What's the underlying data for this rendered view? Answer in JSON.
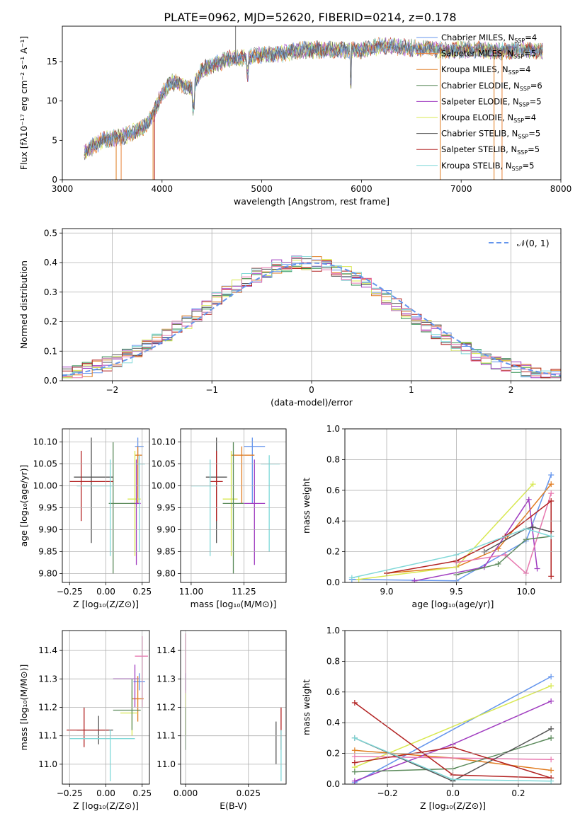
{
  "figure": {
    "title": "PLATE=0962, MJD=52620, FIBERID=0214, z=0.178"
  },
  "colors": {
    "models": [
      "#6495ED",
      "#E8833A",
      "#E07C20",
      "#5B8A5B",
      "#A03CC0",
      "#D8E850",
      "#555555",
      "#B22222",
      "#80D8D8"
    ],
    "axes": "#000000",
    "grid": "#b0b0b0",
    "pdf": "#6495ED",
    "hist": [
      "#6495ED",
      "#E07C20",
      "#2F8F4F",
      "#A03CC0",
      "#D8E850",
      "#555555",
      "#B22222",
      "#80D8D8",
      "#E878B0"
    ]
  },
  "legend_models": [
    {
      "name": "Chabrier MILES, N",
      "sub": "SSP",
      "eq": "=4"
    },
    {
      "name": "Salpeter MILES, N",
      "sub": "SSP",
      "eq": "=5"
    },
    {
      "name": "Kroupa MILES, N",
      "sub": "SSP",
      "eq": "=4"
    },
    {
      "name": "Chabrier ELODIE, N",
      "sub": "SSP",
      "eq": "=6"
    },
    {
      "name": "Salpeter ELODIE, N",
      "sub": "SSP",
      "eq": "=5"
    },
    {
      "name": "Kroupa ELODIE, N",
      "sub": "SSP",
      "eq": "=4"
    },
    {
      "name": "Chabrier STELIB, N",
      "sub": "SSP",
      "eq": "=5"
    },
    {
      "name": "Salpeter STELIB, N",
      "sub": "SSP",
      "eq": "=5"
    },
    {
      "name": "Kroupa STELIB, N",
      "sub": "SSP",
      "eq": "=5"
    }
  ],
  "chart_data": [
    {
      "id": "spectrum",
      "type": "line",
      "xlabel": "wavelength [Angstrom, rest frame]",
      "ylabel": "Flux [fλ10⁻¹⁷ erg cm⁻² s⁻¹ A⁻¹]",
      "xlim": [
        3000,
        8000
      ],
      "ylim": [
        0,
        19.5
      ],
      "xticks": [
        3000,
        4000,
        5000,
        6000,
        7000,
        8000
      ],
      "yticks": [
        0,
        5,
        10,
        15
      ],
      "grid": false,
      "legend_placement": "right",
      "continuum": {
        "x": [
          3220,
          3400,
          3600,
          3800,
          3900,
          3950,
          4000,
          4100,
          4200,
          4300,
          4400,
          4500,
          4600,
          4700,
          4800,
          5000,
          5200,
          5400,
          5600,
          5800,
          6000,
          6200,
          6400,
          6600,
          6800,
          7000,
          7200,
          7400,
          7600,
          7800
        ],
        "y": [
          3.5,
          5.0,
          5.5,
          6.5,
          8.0,
          9.5,
          11.0,
          12.5,
          12.0,
          11.5,
          14.0,
          14.5,
          15.0,
          15.5,
          15.5,
          15.8,
          16.0,
          16.5,
          16.5,
          16.5,
          16.5,
          17.0,
          16.8,
          16.7,
          16.5,
          16.5,
          16.5,
          16.3,
          16.5,
          16.3
        ]
      }
    },
    {
      "id": "residuals",
      "type": "histogram",
      "xlabel": "(data-model)/error",
      "ylabel": "Normed distribution",
      "xlim": [
        -2.5,
        2.5
      ],
      "ylim": [
        0,
        0.515
      ],
      "xticks": [
        -2,
        -1,
        0,
        1,
        2
      ],
      "yticks": [
        0.0,
        0.1,
        0.2,
        0.3,
        0.4,
        0.5
      ],
      "grid": true,
      "legend": "𝒩(0, 1)",
      "legend_placement": "top-right",
      "bin_width": 0.1,
      "bins_start": -2.5
    },
    {
      "id": "age_vs_Z",
      "type": "errorbar",
      "xlabel": "Z [log₁₀(Z/Z⊙)]",
      "ylabel": "age  [log₁₀(age/yr)]",
      "xlim": [
        -0.3,
        0.3
      ],
      "ylim": [
        9.78,
        10.13
      ],
      "xticks": [
        -0.25,
        0.0,
        0.25
      ],
      "yticks": [
        9.8,
        9.85,
        9.9,
        9.95,
        10.0,
        10.05,
        10.1
      ],
      "grid": true,
      "points": [
        {
          "x": 0.22,
          "y": 10.09,
          "xe": [
            0.2,
            0.26
          ],
          "ye": [
            9.96,
            10.11
          ],
          "c": 0
        },
        {
          "x": 0.22,
          "y": 10.07,
          "xe": [
            0.2,
            0.25
          ],
          "ye": [
            9.96,
            10.09
          ],
          "c": 2
        },
        {
          "x": 0.2,
          "y": 9.97,
          "xe": [
            0.15,
            0.24
          ],
          "ye": [
            9.84,
            10.08
          ],
          "c": 5
        },
        {
          "x": 0.21,
          "y": 9.96,
          "xe": [
            0.17,
            0.24
          ],
          "ye": [
            9.82,
            10.06
          ],
          "c": 4
        },
        {
          "x": 0.23,
          "y": 10.05,
          "xe": [
            0.21,
            0.27
          ],
          "ye": [
            9.85,
            10.07
          ],
          "c": 8
        },
        {
          "x": 0.05,
          "y": 9.96,
          "xe": [
            0.02,
            0.2
          ],
          "ye": [
            9.8,
            10.1
          ],
          "c": 3
        },
        {
          "x": -0.1,
          "y": 10.02,
          "xe": [
            -0.22,
            0.05
          ],
          "ye": [
            9.87,
            10.11
          ],
          "c": 6
        },
        {
          "x": -0.17,
          "y": 10.01,
          "xe": [
            -0.25,
            0.05
          ],
          "ye": [
            9.92,
            10.08
          ],
          "c": 7
        },
        {
          "x": 0.03,
          "y": 10.0,
          "xe": [
            -0.2,
            0.05
          ],
          "ye": [
            9.84,
            10.06
          ],
          "c": 8
        }
      ]
    },
    {
      "id": "age_vs_mass",
      "type": "errorbar",
      "xlabel": "mass [log₁₀(M/M⊙)]",
      "ylabel": "",
      "xlim": [
        10.95,
        11.45
      ],
      "ylim": [
        9.78,
        10.13
      ],
      "xticks": [
        11.0,
        11.25
      ],
      "yticks": [
        9.8,
        9.85,
        9.9,
        9.95,
        10.0,
        10.05,
        10.1
      ],
      "grid": true,
      "points": [
        {
          "x": 11.29,
          "y": 10.09,
          "xe": [
            11.25,
            11.35
          ],
          "ye": [
            9.96,
            10.11
          ],
          "c": 0
        },
        {
          "x": 11.24,
          "y": 10.07,
          "xe": [
            11.19,
            11.3
          ],
          "ye": [
            9.96,
            10.09
          ],
          "c": 2
        },
        {
          "x": 11.19,
          "y": 9.97,
          "xe": [
            11.15,
            11.22
          ],
          "ye": [
            9.84,
            10.08
          ],
          "c": 5
        },
        {
          "x": 11.3,
          "y": 9.96,
          "xe": [
            11.23,
            11.35
          ],
          "ye": [
            9.82,
            10.06
          ],
          "c": 4
        },
        {
          "x": 11.37,
          "y": 10.05,
          "xe": [
            11.33,
            11.42
          ],
          "ye": [
            9.85,
            10.07
          ],
          "c": 8
        },
        {
          "x": 11.2,
          "y": 9.96,
          "xe": [
            11.15,
            11.25
          ],
          "ye": [
            9.8,
            10.1
          ],
          "c": 3
        },
        {
          "x": 11.12,
          "y": 10.02,
          "xe": [
            11.07,
            11.17
          ],
          "ye": [
            9.87,
            10.11
          ],
          "c": 6
        },
        {
          "x": 11.12,
          "y": 10.01,
          "xe": [
            11.09,
            11.15
          ],
          "ye": [
            9.92,
            10.08
          ],
          "c": 7
        },
        {
          "x": 11.09,
          "y": 10.0,
          "xe": [
            11.0,
            11.12
          ],
          "ye": [
            9.84,
            10.06
          ],
          "c": 8
        }
      ]
    },
    {
      "id": "mass_weight_vs_age",
      "type": "line",
      "xlabel": "age  [log₁₀(age/yr)]",
      "ylabel": "mass weight",
      "xlim": [
        8.7,
        10.25
      ],
      "ylim": [
        0,
        1.0
      ],
      "xticks": [
        9.0,
        9.5,
        10.0
      ],
      "yticks": [
        0.0,
        0.2,
        0.4,
        0.6,
        0.8,
        1.0
      ],
      "grid": true,
      "series": [
        {
          "c": 0,
          "x": [
            8.75,
            9.5,
            10.0,
            10.18
          ],
          "y": [
            0.02,
            0.01,
            0.27,
            0.7
          ]
        },
        {
          "c": 2,
          "x": [
            9.0,
            9.5,
            9.8,
            10.18
          ],
          "y": [
            0.06,
            0.1,
            0.22,
            0.64
          ]
        },
        {
          "c": 5,
          "x": [
            8.8,
            9.5,
            10.05
          ],
          "y": [
            0.02,
            0.1,
            0.64
          ]
        },
        {
          "c": 4,
          "x": [
            9.2,
            9.7,
            10.02,
            10.08
          ],
          "y": [
            0.01,
            0.1,
            0.54,
            0.09
          ]
        },
        {
          "c": 9,
          "x": [
            9.5,
            9.85,
            10.0,
            10.18
          ],
          "y": [
            0.13,
            0.18,
            0.06,
            0.58
          ]
        },
        {
          "c": 3,
          "x": [
            9.5,
            9.8,
            10.0,
            10.18
          ],
          "y": [
            0.05,
            0.12,
            0.28,
            0.3
          ]
        },
        {
          "c": 6,
          "x": [
            9.7,
            10.0,
            10.05,
            10.18
          ],
          "y": [
            0.2,
            0.35,
            0.36,
            0.33
          ]
        },
        {
          "c": 7,
          "x": [
            9.0,
            9.5,
            9.85,
            10.18,
            10.18
          ],
          "y": [
            0.06,
            0.14,
            0.3,
            0.53,
            0.04
          ]
        },
        {
          "c": 8,
          "x": [
            8.75,
            9.5,
            10.0,
            10.18
          ],
          "y": [
            0.03,
            0.18,
            0.35,
            0.3
          ]
        }
      ]
    },
    {
      "id": "mass_vs_Z",
      "type": "errorbar",
      "xlabel": "Z [log₁₀(Z/Z⊙)]",
      "ylabel": "mass [log₁₀(M/M⊙)]",
      "xlim": [
        -0.3,
        0.3
      ],
      "ylim": [
        10.93,
        11.47
      ],
      "xticks": [
        -0.25,
        0.0,
        0.25
      ],
      "yticks": [
        11.0,
        11.1,
        11.2,
        11.3,
        11.4
      ],
      "grid": true,
      "points": [
        {
          "x": 0.23,
          "y": 11.29,
          "xe": [
            0.19,
            0.27
          ],
          "ye": [
            11.26,
            11.32
          ],
          "c": 0
        },
        {
          "x": 0.22,
          "y": 11.23,
          "xe": [
            0.18,
            0.26
          ],
          "ye": [
            11.15,
            11.31
          ],
          "c": 2
        },
        {
          "x": 0.18,
          "y": 11.18,
          "xe": [
            0.1,
            0.22
          ],
          "ye": [
            11.1,
            11.26
          ],
          "c": 5
        },
        {
          "x": 0.2,
          "y": 11.3,
          "xe": [
            0.05,
            0.23
          ],
          "ye": [
            11.2,
            11.35
          ],
          "c": 4
        },
        {
          "x": 0.25,
          "y": 11.38,
          "xe": [
            0.2,
            0.29
          ],
          "ye": [
            11.2,
            11.45
          ],
          "c": 9
        },
        {
          "x": 0.18,
          "y": 11.19,
          "xe": [
            0.05,
            0.24
          ],
          "ye": [
            11.12,
            11.3
          ],
          "c": 3
        },
        {
          "x": -0.05,
          "y": 11.12,
          "xe": [
            -0.2,
            0.05
          ],
          "ye": [
            11.07,
            11.17
          ],
          "c": 6
        },
        {
          "x": -0.15,
          "y": 11.12,
          "xe": [
            -0.27,
            0.02
          ],
          "ye": [
            11.06,
            11.2
          ],
          "c": 7
        },
        {
          "x": 0.03,
          "y": 11.09,
          "xe": [
            -0.25,
            0.2
          ],
          "ye": [
            10.94,
            11.12
          ],
          "c": 8
        }
      ]
    },
    {
      "id": "mass_vs_ebv",
      "type": "errorbar",
      "xlabel": "E(B-V)",
      "ylabel": "",
      "xlim": [
        -0.002,
        0.04
      ],
      "ylim": [
        10.93,
        11.47
      ],
      "xticks": [
        0.0,
        0.025
      ],
      "yticks": [
        11.0,
        11.1,
        11.2,
        11.3,
        11.4
      ],
      "grid": true,
      "points": [
        {
          "x": 0.0,
          "y": 11.29,
          "xe": [
            0.0,
            0.0
          ],
          "ye": [
            11.26,
            11.32
          ],
          "c": 0
        },
        {
          "x": 0.0,
          "y": 11.38,
          "xe": [
            0.0,
            0.0
          ],
          "ye": [
            11.25,
            11.46
          ],
          "c": 9
        },
        {
          "x": 0.0,
          "y": 11.18,
          "xe": [
            0.0,
            0.0
          ],
          "ye": [
            11.1,
            11.25
          ],
          "c": 5
        },
        {
          "x": 0.0,
          "y": 11.12,
          "xe": [
            0.0,
            0.0
          ],
          "ye": [
            11.05,
            11.2
          ],
          "c": 3
        },
        {
          "x": 0.036,
          "y": 11.12,
          "xe": [
            0.036,
            0.036
          ],
          "ye": [
            11.0,
            11.15
          ],
          "c": 6
        },
        {
          "x": 0.038,
          "y": 11.12,
          "xe": [
            0.038,
            0.038
          ],
          "ye": [
            11.05,
            11.2
          ],
          "c": 7
        },
        {
          "x": 0.038,
          "y": 11.09,
          "xe": [
            0.038,
            0.038
          ],
          "ye": [
            10.94,
            11.12
          ],
          "c": 8
        }
      ]
    },
    {
      "id": "mass_weight_vs_Z",
      "type": "line",
      "xlabel": "Z [log₁₀(Z/Z⊙)]",
      "ylabel": "mass weight",
      "xlim": [
        -0.33,
        0.33
      ],
      "ylim": [
        0,
        1.0
      ],
      "xticks": [
        -0.2,
        0.0,
        0.2
      ],
      "yticks": [
        0.0,
        0.2,
        0.4,
        0.6,
        0.8,
        1.0
      ],
      "grid": true,
      "series": [
        {
          "c": 0,
          "x": [
            -0.3,
            0.3
          ],
          "y": [
            0.01,
            0.7
          ]
        },
        {
          "c": 2,
          "x": [
            -0.3,
            0.0,
            0.3
          ],
          "y": [
            0.22,
            0.17,
            0.09
          ]
        },
        {
          "c": 5,
          "x": [
            -0.3,
            0.3
          ],
          "y": [
            0.11,
            0.64
          ]
        },
        {
          "c": 4,
          "x": [
            -0.3,
            0.0,
            0.3
          ],
          "y": [
            0.02,
            0.26,
            0.54
          ]
        },
        {
          "c": 9,
          "x": [
            -0.3,
            0.3
          ],
          "y": [
            0.18,
            0.16
          ]
        },
        {
          "c": 3,
          "x": [
            -0.3,
            0.0,
            0.3
          ],
          "y": [
            0.08,
            0.1,
            0.3
          ]
        },
        {
          "c": 6,
          "x": [
            -0.3,
            0.0,
            0.3
          ],
          "y": [
            0.3,
            0.02,
            0.36
          ]
        },
        {
          "c": 7,
          "x": [
            -0.3,
            0.0,
            0.3,
            0.3,
            0.0,
            -0.3
          ],
          "y": [
            0.53,
            0.06,
            0.04,
            0.04,
            0.24,
            0.14
          ]
        },
        {
          "c": 8,
          "x": [
            -0.3,
            0.0,
            0.3
          ],
          "y": [
            0.3,
            0.03,
            0.02
          ]
        }
      ]
    }
  ]
}
